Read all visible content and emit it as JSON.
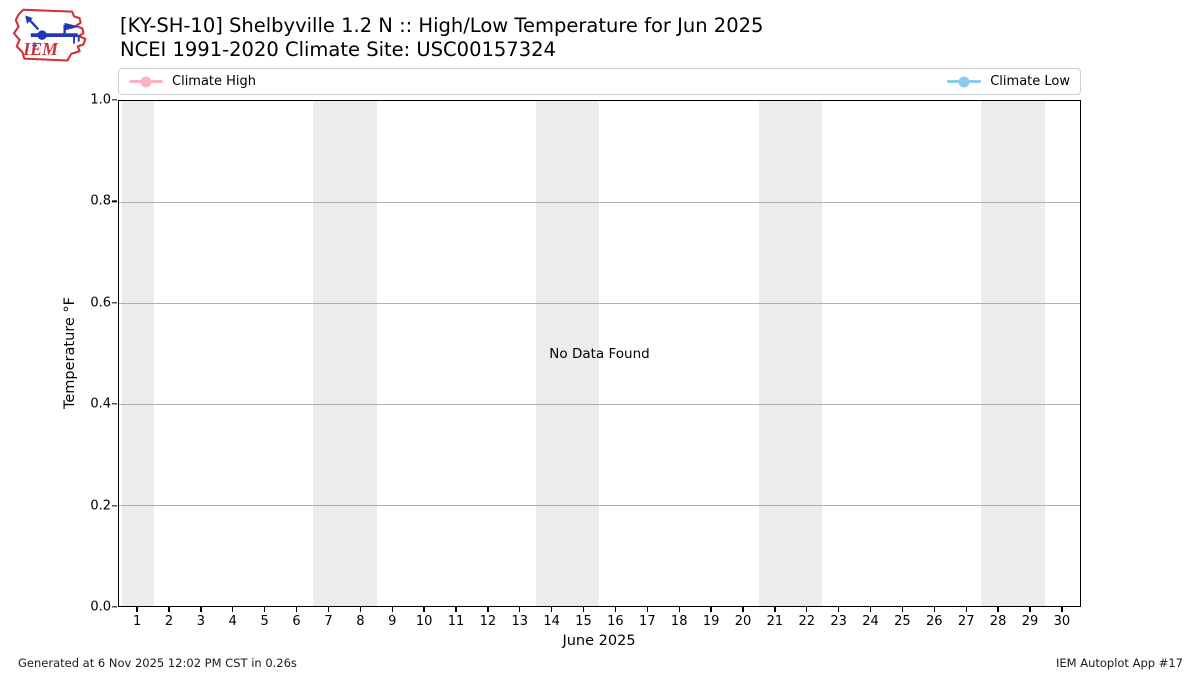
{
  "header": {
    "logo_text": "IEM",
    "title_line1": "[KY-SH-10] Shelbyville 1.2 N :: High/Low Temperature for Jun 2025",
    "title_line2": "NCEI 1991-2020 Climate Site: USC00157324"
  },
  "legend": {
    "items": [
      {
        "label": "Climate High",
        "color": "#f9b4c3"
      },
      {
        "label": "Climate Low",
        "color": "#87ceeb"
      }
    ]
  },
  "plot": {
    "no_data_text": "No Data Found",
    "ylabel": "Temperature °F",
    "xlabel": "June 2025"
  },
  "footer": {
    "left": "Generated at 6 Nov 2025 12:02 PM CST in 0.26s",
    "right": "IEM Autoplot App #17"
  },
  "colors": {
    "climate_high": "#f9b4c3",
    "climate_low": "#87ceeb",
    "weekend_band": "#ececec",
    "gridline": "#b0b0b0",
    "logo_red": "#d22e35",
    "logo_blue": "#2338b5"
  },
  "chart_data": {
    "type": "line",
    "title": "[KY-SH-10] Shelbyville 1.2 N :: High/Low Temperature for Jun 2025",
    "subtitle": "NCEI 1991-2020 Climate Site: USC00157324",
    "xlabel": "June 2025",
    "ylabel": "Temperature °F",
    "xlim": [
      0.4,
      30.6
    ],
    "ylim": [
      0.0,
      1.0
    ],
    "x_ticks": [
      1,
      2,
      3,
      4,
      5,
      6,
      7,
      8,
      9,
      10,
      11,
      12,
      13,
      14,
      15,
      16,
      17,
      18,
      19,
      20,
      21,
      22,
      23,
      24,
      25,
      26,
      27,
      28,
      29,
      30
    ],
    "y_ticks": [
      {
        "value": 0.0,
        "label": "0.0"
      },
      {
        "value": 0.2,
        "label": "0.2"
      },
      {
        "value": 0.4,
        "label": "0.4"
      },
      {
        "value": 0.6,
        "label": "0.6"
      },
      {
        "value": 0.8,
        "label": "0.8"
      },
      {
        "value": 1.0,
        "label": "1.0"
      }
    ],
    "grid": "horizontal only, color #b0b0b0",
    "legend_position": "top, expanded full plot width",
    "series": [
      {
        "name": "Climate High",
        "color": "#f9b4c3",
        "x": [],
        "values": []
      },
      {
        "name": "Climate Low",
        "color": "#87ceeb",
        "x": [],
        "values": []
      }
    ],
    "annotations": [
      {
        "text": "No Data Found",
        "position": "plot center"
      }
    ],
    "weekend_bands_days": [
      [
        0.5,
        1.5
      ],
      [
        6.5,
        8.5
      ],
      [
        13.5,
        15.5
      ],
      [
        20.5,
        22.5
      ],
      [
        27.5,
        29.5
      ]
    ]
  }
}
